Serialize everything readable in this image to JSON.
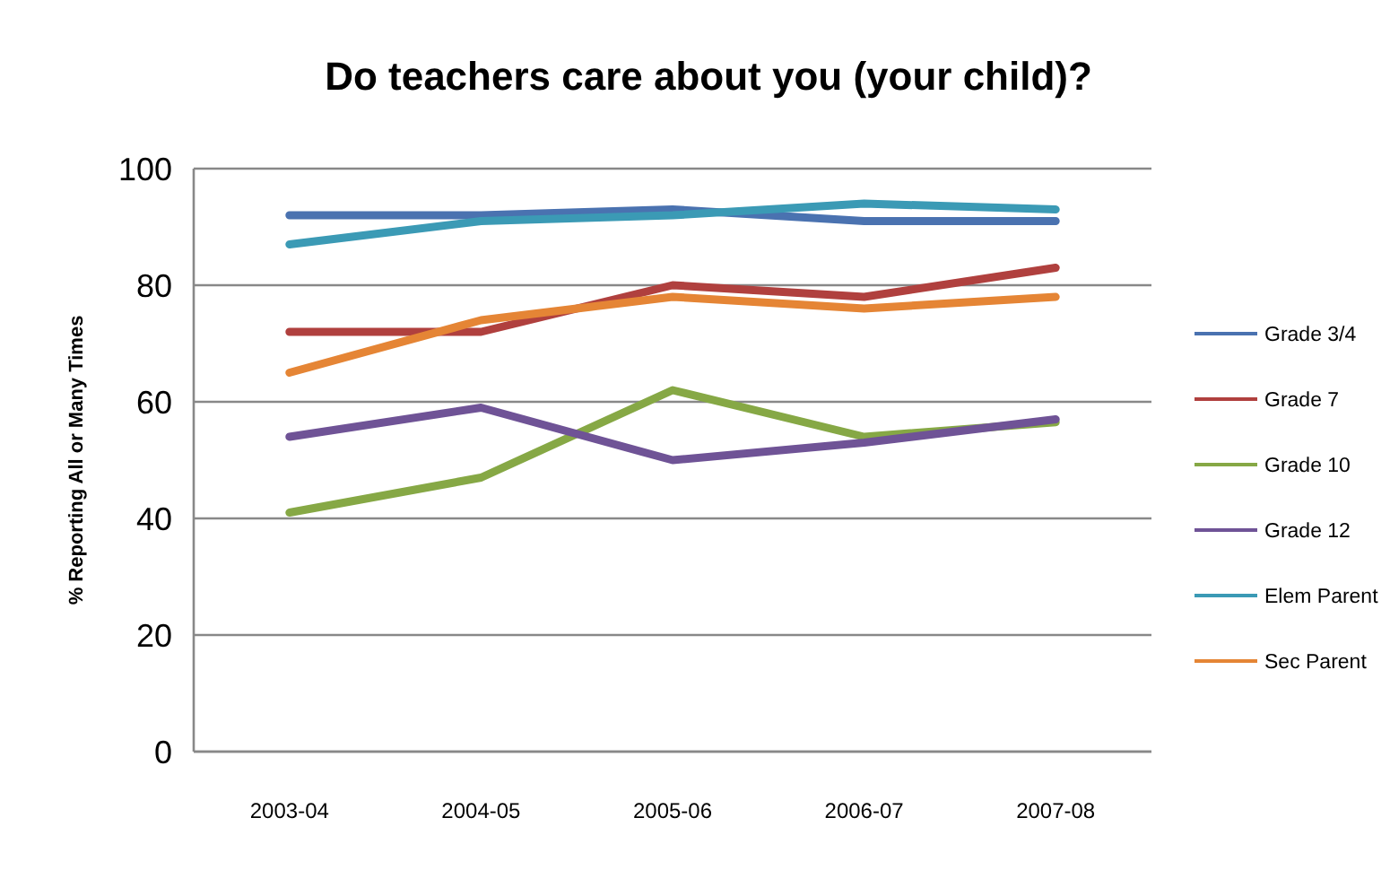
{
  "chart_data": {
    "type": "line",
    "title": "Do teachers care about you (your child)?",
    "ylabel": "% Reporting All  or Many Times",
    "categories": [
      "2003-04",
      "2004-05",
      "2005-06",
      "2006-07",
      "2007-08"
    ],
    "series": [
      {
        "name": "Grade 3/4",
        "color": "#4a72b0",
        "values": [
          92,
          92,
          93,
          91,
          91
        ]
      },
      {
        "name": "Grade 7",
        "color": "#b0403e",
        "values": [
          72,
          72,
          80,
          78,
          83
        ]
      },
      {
        "name": "Grade 10",
        "color": "#86a845",
        "values": [
          41,
          47,
          62,
          54,
          56.5
        ]
      },
      {
        "name": "Grade 12",
        "color": "#6f5396",
        "values": [
          54,
          59,
          50,
          53,
          57
        ]
      },
      {
        "name": "Elem Parent",
        "color": "#3b9ab5",
        "values": [
          87,
          91,
          92,
          94,
          93
        ]
      },
      {
        "name": "Sec Parent",
        "color": "#e58535",
        "values": [
          65,
          74,
          78,
          76,
          78
        ]
      }
    ],
    "ylim": [
      0,
      100
    ],
    "yticks": [
      0,
      20,
      40,
      60,
      80,
      100
    ],
    "grid": "y",
    "legend": "right",
    "marker": "none",
    "line_style": "solid"
  }
}
